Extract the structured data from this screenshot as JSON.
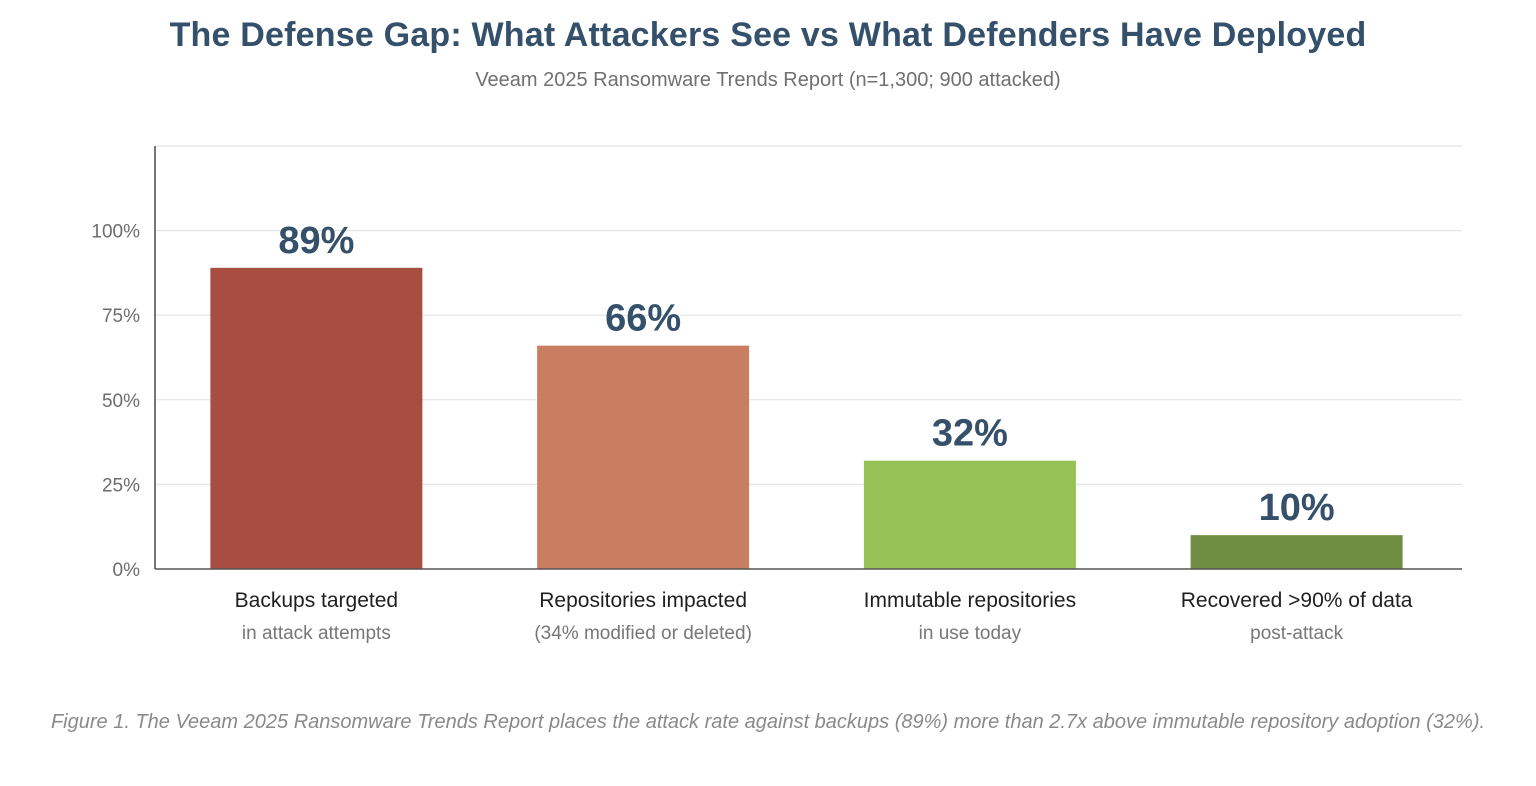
{
  "page": {
    "title": "The Defense Gap: What Attackers See vs What Defenders Have Deployed",
    "subtitle": "Veeam 2025 Ransomware Trends Report (n=1,300; 900 attacked)",
    "caption": "Figure 1. The Veeam 2025 Ransomware Trends Report places the attack rate against backups (89%) more than 2.7x above immutable repository adoption (32%)."
  },
  "chart_data": {
    "type": "bar",
    "title": "The Defense Gap: What Attackers See vs What Defenders Have Deployed",
    "subtitle": "Veeam 2025 Ransomware Trends Report (n=1,300; 900 attacked)",
    "categories": [
      "Backups targeted",
      "Repositories impacted",
      "Immutable repositories",
      "Recovered >90% of data"
    ],
    "sublabels": [
      "in attack attempts",
      "(34% modified or deleted)",
      "in use today",
      "post-attack"
    ],
    "values": [
      89,
      66,
      32,
      10
    ],
    "value_labels": [
      "89%",
      "66%",
      "32%",
      "10%"
    ],
    "colors": [
      "#a84d42",
      "#c97e62",
      "#96c155",
      "#6e8d41"
    ],
    "ylim": [
      0,
      125
    ],
    "yticks": [
      0,
      25,
      50,
      75,
      100
    ],
    "ytick_labels": [
      "0%",
      "25%",
      "50%",
      "75%",
      "100%"
    ],
    "grid": true,
    "xlabel": "",
    "ylabel": ""
  }
}
